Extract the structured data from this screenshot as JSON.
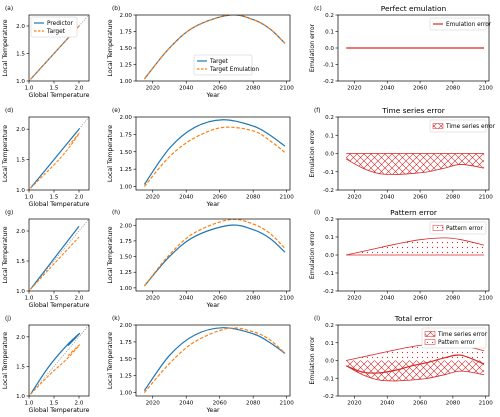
{
  "colors": {
    "predictor": "#1f77b4",
    "target": "#ff7f0e",
    "error": "#d62728",
    "axis": "#000000",
    "identity": "#7f7f7f"
  },
  "chart_data": [
    {
      "id": "a",
      "type": "line",
      "label": "(a)",
      "title": "",
      "xlabel": "Global Temperature",
      "ylabel": "Local Temperature",
      "xlim": [
        1.0,
        2.2
      ],
      "ylim": [
        1.0,
        2.2
      ],
      "xticks": [
        1.0,
        1.5,
        2.0
      ],
      "yticks": [
        1.0,
        1.5,
        2.0
      ],
      "legend": {
        "position": "top-left",
        "entries": [
          {
            "name": "Predictor",
            "style": "solid",
            "color": "#1f77b4"
          },
          {
            "name": "Target",
            "style": "dashed",
            "color": "#ff7f0e"
          }
        ]
      },
      "series": [
        {
          "name": "Predictor",
          "x": [
            1.03,
            2.0
          ],
          "y": [
            1.03,
            2.0
          ]
        },
        {
          "name": "Target",
          "x": [
            1.03,
            2.0
          ],
          "y": [
            1.03,
            2.0
          ]
        }
      ]
    },
    {
      "id": "b",
      "type": "line",
      "label": "(b)",
      "title": "",
      "xlabel": "Year",
      "ylabel": "Local Temperature",
      "xlim": [
        2010,
        2102
      ],
      "ylim": [
        1.0,
        2.0
      ],
      "xticks": [
        2020,
        2040,
        2060,
        2080,
        2100
      ],
      "yticks": [
        1.0,
        1.25,
        1.5,
        1.75,
        2.0
      ],
      "legend": {
        "position": "lower-center",
        "entries": [
          {
            "name": "Target",
            "style": "solid",
            "color": "#1f77b4"
          },
          {
            "name": "Target Emulation",
            "style": "dashed",
            "color": "#ff7f0e"
          }
        ]
      },
      "series": [
        {
          "name": "Target",
          "x": [
            2015,
            2030,
            2045,
            2066,
            2080,
            2090,
            2099
          ],
          "y": [
            1.03,
            1.5,
            1.82,
            2.0,
            1.93,
            1.79,
            1.57
          ]
        },
        {
          "name": "Target Emulation",
          "x": [
            2015,
            2030,
            2045,
            2066,
            2080,
            2090,
            2099
          ],
          "y": [
            1.03,
            1.5,
            1.82,
            2.0,
            1.93,
            1.79,
            1.57
          ]
        }
      ]
    },
    {
      "id": "c",
      "type": "line",
      "label": "(c)",
      "title": "Perfect emulation",
      "xlabel": "",
      "ylabel": "Emulation error",
      "xlim": [
        2010,
        2102
      ],
      "ylim": [
        -0.2,
        0.2
      ],
      "xticks": [
        2020,
        2040,
        2060,
        2080,
        2100
      ],
      "yticks": [
        -0.2,
        -0.1,
        0.0,
        0.1,
        0.2
      ],
      "legend": {
        "position": "top-right",
        "entries": [
          {
            "name": "Emulation error",
            "style": "solid",
            "color": "#d62728"
          }
        ]
      },
      "series": [
        {
          "name": "Emulation error",
          "x": [
            2015,
            2099
          ],
          "y": [
            0.0,
            0.0
          ]
        }
      ]
    },
    {
      "id": "d",
      "type": "line",
      "label": "(d)",
      "title": "",
      "xlabel": "Global Temperature",
      "ylabel": "Local Temperature",
      "xlim": [
        1.0,
        2.2
      ],
      "ylim": [
        1.0,
        2.2
      ],
      "xticks": [
        1.0,
        1.5,
        2.0
      ],
      "yticks": [
        1.0,
        1.5,
        2.0
      ],
      "series": [
        {
          "name": "Predictor",
          "x": [
            1.03,
            1.3,
            1.6,
            1.85,
            2.0,
            1.95,
            1.8
          ],
          "y": [
            1.03,
            1.3,
            1.6,
            1.85,
            2.0,
            1.95,
            1.8
          ]
        },
        {
          "name": "Target",
          "x": [
            1.03,
            1.3,
            1.6,
            1.85,
            2.0,
            1.95,
            1.8
          ],
          "y": [
            1.03,
            1.25,
            1.5,
            1.75,
            1.93,
            1.88,
            1.74
          ]
        }
      ]
    },
    {
      "id": "e",
      "type": "line",
      "label": "(e)",
      "title": "",
      "xlabel": "Year",
      "ylabel": "Local Temperature",
      "xlim": [
        2010,
        2102
      ],
      "ylim": [
        0.95,
        2.0
      ],
      "xticks": [
        2020,
        2040,
        2060,
        2080,
        2100
      ],
      "yticks": [
        1.0,
        1.25,
        1.5,
        1.75,
        2.0
      ],
      "series": [
        {
          "name": "Target",
          "x": [
            2015,
            2030,
            2045,
            2062,
            2080,
            2090,
            2099
          ],
          "y": [
            1.03,
            1.55,
            1.85,
            1.96,
            1.87,
            1.74,
            1.58
          ]
        },
        {
          "name": "Target Emulation",
          "x": [
            2015,
            2030,
            2045,
            2062,
            2080,
            2090,
            2099
          ],
          "y": [
            1.0,
            1.43,
            1.7,
            1.85,
            1.8,
            1.66,
            1.49
          ]
        }
      ]
    },
    {
      "id": "f",
      "type": "area",
      "label": "(f)",
      "title": "Time series error",
      "xlabel": "",
      "ylabel": "Emulation error",
      "xlim": [
        2010,
        2102
      ],
      "ylim": [
        -0.2,
        0.2
      ],
      "xticks": [
        2020,
        2040,
        2060,
        2080,
        2100
      ],
      "yticks": [
        -0.2,
        -0.1,
        0.0,
        0.1,
        0.2
      ],
      "legend": {
        "position": "top-right",
        "entries": [
          {
            "name": "Time series error",
            "style": "hatch-x",
            "color": "#d62728"
          }
        ]
      },
      "series": [
        {
          "name": "Time series error",
          "x": [
            2015,
            2025,
            2035,
            2045,
            2055,
            2065,
            2075,
            2085,
            2099
          ],
          "y": [
            -0.03,
            -0.08,
            -0.11,
            -0.115,
            -0.11,
            -0.1,
            -0.08,
            -0.06,
            -0.08
          ]
        }
      ]
    },
    {
      "id": "g",
      "type": "line",
      "label": "(g)",
      "title": "",
      "xlabel": "Global Temperature",
      "ylabel": "Local Temperature",
      "xlim": [
        1.0,
        2.2
      ],
      "ylim": [
        1.0,
        2.2
      ],
      "xticks": [
        1.0,
        1.5,
        2.0
      ],
      "yticks": [
        1.0,
        1.5,
        2.0
      ],
      "series": [
        {
          "name": "Predictor",
          "x": [
            1.03,
            2.0
          ],
          "y": [
            1.03,
            2.08
          ]
        },
        {
          "name": "Target",
          "x": [
            1.03,
            2.0
          ],
          "y": [
            1.03,
            1.9
          ]
        }
      ]
    },
    {
      "id": "h",
      "type": "line",
      "label": "(h)",
      "title": "",
      "xlabel": "Year",
      "ylabel": "Local Temperature",
      "xlim": [
        2010,
        2102
      ],
      "ylim": [
        0.95,
        2.1
      ],
      "xticks": [
        2020,
        2040,
        2060,
        2080,
        2100
      ],
      "yticks": [
        1.0,
        1.25,
        1.5,
        1.75,
        2.0
      ],
      "series": [
        {
          "name": "Target",
          "x": [
            2015,
            2030,
            2045,
            2066,
            2080,
            2090,
            2099
          ],
          "y": [
            1.03,
            1.5,
            1.82,
            2.0,
            1.93,
            1.79,
            1.57
          ]
        },
        {
          "name": "Target Emulation",
          "x": [
            2015,
            2030,
            2045,
            2066,
            2080,
            2090,
            2099
          ],
          "y": [
            1.03,
            1.53,
            1.88,
            2.09,
            2.02,
            1.87,
            1.63
          ]
        }
      ]
    },
    {
      "id": "i",
      "type": "area",
      "label": "(i)",
      "title": "Pattern error",
      "xlabel": "",
      "ylabel": "Emulation error",
      "xlim": [
        2010,
        2102
      ],
      "ylim": [
        -0.2,
        0.2
      ],
      "xticks": [
        2020,
        2040,
        2060,
        2080,
        2100
      ],
      "yticks": [
        -0.2,
        -0.1,
        0.0,
        0.1,
        0.2
      ],
      "legend": {
        "position": "top-right",
        "entries": [
          {
            "name": "Pattern error",
            "style": "hatch-dot",
            "color": "#d62728"
          }
        ]
      },
      "series": [
        {
          "name": "Pattern error",
          "x": [
            2015,
            2030,
            2045,
            2060,
            2075,
            2085,
            2099
          ],
          "y": [
            0.0,
            0.03,
            0.06,
            0.085,
            0.095,
            0.085,
            0.055
          ]
        }
      ]
    },
    {
      "id": "j",
      "type": "line",
      "label": "(j)",
      "title": "",
      "xlabel": "Global Temperature",
      "ylabel": "Local Temperature",
      "xlim": [
        1.0,
        2.2
      ],
      "ylim": [
        1.0,
        2.2
      ],
      "xticks": [
        1.0,
        1.5,
        2.0
      ],
      "yticks": [
        1.0,
        1.5,
        2.0
      ],
      "series": [
        {
          "name": "Predictor",
          "x": [
            1.03,
            1.4,
            1.75,
            2.0,
            1.95,
            1.78
          ],
          "y": [
            1.03,
            1.5,
            1.85,
            2.05,
            2.0,
            1.85
          ]
        },
        {
          "name": "Target",
          "x": [
            1.03,
            1.4,
            1.75,
            2.0,
            1.95,
            1.78
          ],
          "y": [
            1.03,
            1.35,
            1.62,
            1.85,
            1.82,
            1.68
          ]
        }
      ]
    },
    {
      "id": "k",
      "type": "line",
      "label": "(k)",
      "title": "",
      "xlabel": "Year",
      "ylabel": "Local Temperature",
      "xlim": [
        2010,
        2102
      ],
      "ylim": [
        0.95,
        2.0
      ],
      "xticks": [
        2020,
        2040,
        2060,
        2080,
        2100
      ],
      "yticks": [
        1.0,
        1.25,
        1.5,
        1.75,
        2.0
      ],
      "series": [
        {
          "name": "Target",
          "x": [
            2015,
            2030,
            2045,
            2062,
            2080,
            2090,
            2099
          ],
          "y": [
            1.03,
            1.55,
            1.85,
            1.96,
            1.87,
            1.74,
            1.58
          ]
        },
        {
          "name": "Target Emulation",
          "x": [
            2015,
            2030,
            2045,
            2065,
            2080,
            2090,
            2099
          ],
          "y": [
            1.0,
            1.43,
            1.75,
            1.95,
            1.9,
            1.78,
            1.58
          ]
        }
      ]
    },
    {
      "id": "l",
      "type": "line",
      "label": "(l)",
      "title": "Total error",
      "xlabel": "",
      "ylabel": "Emulation error",
      "xlim": [
        2010,
        2102
      ],
      "ylim": [
        -0.2,
        0.2
      ],
      "xticks": [
        2020,
        2040,
        2060,
        2080,
        2100
      ],
      "yticks": [
        -0.2,
        -0.1,
        0.0,
        0.1,
        0.2
      ],
      "legend": {
        "position": "top-right",
        "entries": [
          {
            "name": "Time series error",
            "style": "hatch-x",
            "color": "#d62728"
          },
          {
            "name": "Pattern error",
            "style": "hatch-dot",
            "color": "#d62728"
          }
        ]
      },
      "series": [
        {
          "name": "Time series error",
          "x": [
            2015,
            2025,
            2035,
            2045,
            2055,
            2065,
            2075,
            2085,
            2099
          ],
          "y": [
            -0.03,
            -0.08,
            -0.11,
            -0.115,
            -0.11,
            -0.1,
            -0.08,
            -0.06,
            -0.08
          ]
        },
        {
          "name": "Pattern error",
          "x": [
            2015,
            2030,
            2045,
            2060,
            2075,
            2085,
            2099
          ],
          "y": [
            0.0,
            0.03,
            0.06,
            0.085,
            0.095,
            0.085,
            0.055
          ]
        },
        {
          "name": "Total error",
          "x": [
            2015,
            2025,
            2035,
            2045,
            2055,
            2065,
            2075,
            2085,
            2099
          ],
          "y": [
            -0.03,
            -0.065,
            -0.07,
            -0.055,
            -0.03,
            -0.01,
            0.015,
            0.03,
            -0.02
          ]
        }
      ]
    }
  ]
}
